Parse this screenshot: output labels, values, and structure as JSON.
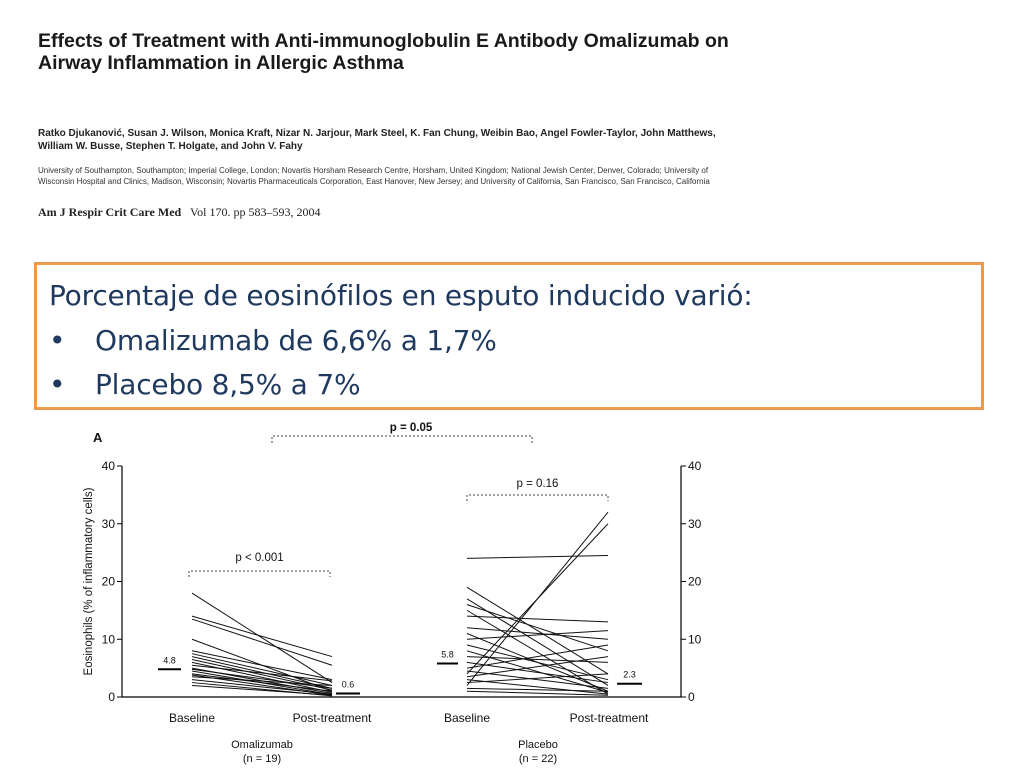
{
  "paper": {
    "title": "Effects of Treatment with Anti-immunoglobulin E Antibody Omalizumab on Airway Inflammation in Allergic Asthma",
    "authors": "Ratko Djukanović, Susan J. Wilson, Monica Kraft, Nizar N. Jarjour, Mark Steel, K. Fan Chung, Weibin Bao, Angel Fowler-Taylor, John Matthews, William W. Busse, Stephen T. Holgate, and John V. Fahy",
    "affiliations": "University of Southampton, Southampton; Imperial College, London; Novartis Horsham Research Centre, Horsham, United Kingdom; National Jewish Center, Denver, Colorado; University of Wisconsin Hospital and Clinics, Madison, Wisconsin; Novartis Pharmaceuticals Corporation, East Hanover, New Jersey; and University of California, San Francisco, San Francisco, California",
    "citation_journal": "Am J Respir Crit Care Med",
    "citation_details": "Vol 170. pp 583–593, 2004"
  },
  "highlight": {
    "heading": "Porcentaje de eosinófilos  en esputo inducido varió:",
    "bullet_glyph": "•",
    "items": [
      "Omalizumab de 6,6% a 1,7%",
      "Placebo 8,5% a 7%"
    ],
    "border_color": "#ea9a4e",
    "text_color": "#1f3a5e"
  },
  "chart_data": {
    "type": "line",
    "panel_label": "A",
    "ylabel": "Eosinophils (% of inflammatory cells)",
    "ylim": [
      0,
      40
    ],
    "yticks": [
      0,
      10,
      20,
      30,
      40
    ],
    "x_timepoints": [
      "Baseline",
      "Post-treatment"
    ],
    "groups": [
      {
        "name": "Omalizumab",
        "n_label": "(n = 19)",
        "baseline_median": 4.8,
        "post_median": 0.6,
        "baseline_median_label": "4.8",
        "post_median_label": "0.6",
        "comparison": "p < 0.001",
        "pairs": [
          [
            18,
            2.5
          ],
          [
            14,
            7
          ],
          [
            13.5,
            5.5
          ],
          [
            10,
            1
          ],
          [
            8,
            3
          ],
          [
            7.5,
            2
          ],
          [
            7,
            1.5
          ],
          [
            6.5,
            1.2
          ],
          [
            6,
            0.8
          ],
          [
            5.5,
            2.8
          ],
          [
            5,
            0.6
          ],
          [
            4.8,
            1.5
          ],
          [
            4.5,
            0.4
          ],
          [
            4,
            1
          ],
          [
            3.8,
            0.3
          ],
          [
            3.5,
            2
          ],
          [
            3,
            0.5
          ],
          [
            2.5,
            0.2
          ],
          [
            2,
            0.3
          ]
        ]
      },
      {
        "name": "Placebo",
        "n_label": "(n = 22)",
        "baseline_median": 5.8,
        "post_median": 2.3,
        "baseline_median_label": "5.8",
        "post_median_label": "2.3",
        "comparison": "p = 0.16",
        "pairs": [
          [
            24,
            24.5
          ],
          [
            2,
            32
          ],
          [
            4,
            30
          ],
          [
            19,
            4
          ],
          [
            17,
            2
          ],
          [
            16,
            8
          ],
          [
            15,
            0.5
          ],
          [
            14,
            13
          ],
          [
            12,
            10
          ],
          [
            11,
            1
          ],
          [
            10,
            11.5
          ],
          [
            9,
            3
          ],
          [
            8,
            0.8
          ],
          [
            7,
            6
          ],
          [
            6,
            2.5
          ],
          [
            5,
            9
          ],
          [
            4.5,
            1.5
          ],
          [
            3.5,
            7
          ],
          [
            3,
            0.5
          ],
          [
            2.5,
            4
          ],
          [
            1.5,
            1
          ],
          [
            1,
            0.3
          ]
        ]
      }
    ],
    "between_group_comparison": "p = 0.05"
  }
}
